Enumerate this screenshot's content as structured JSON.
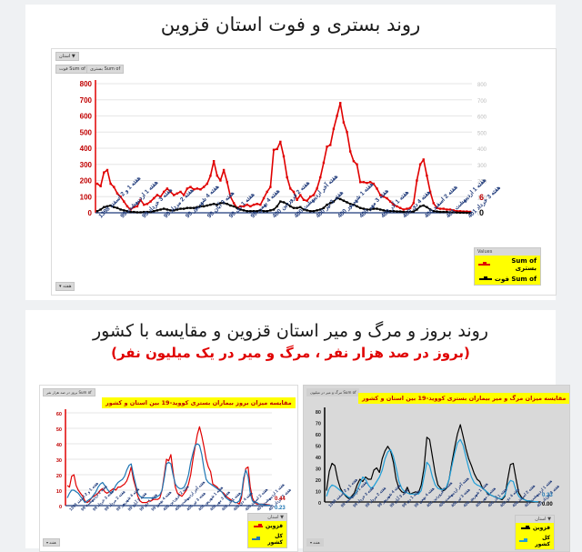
{
  "page": {
    "top_title": "روند بستری و فوت استان قزوین",
    "bottom_title": "روند بروز و مرگ و میر استان قزوین و مقایسه با کشور",
    "bottom_subtitle": "(بروز در صد هزار نفر ، مرگ و میر در یک میلیون نفر)"
  },
  "chart1_ui": {
    "filter_button": "استان",
    "field_pill_1": "Sum of فوت",
    "field_pill_2": "Sum of بستری",
    "legend_header": "Values",
    "legend_items": [
      {
        "label": "Sum of بستری",
        "color": "#e00000"
      },
      {
        "label": "Sum of فوت",
        "color": "#000000"
      }
    ],
    "axis_field_button": "هفته",
    "end_label_1": "6",
    "end_label_2": "0"
  },
  "chart2_ui": {
    "field_pill": "Sum of بروز در صد هزار نفر",
    "title": "مقایسه میزان بروز بیماران بستری کووید-19 بین استان و کشور",
    "legend_header": "استان",
    "legend_items": [
      {
        "label": "قزوین",
        "color": "#e00000"
      },
      {
        "label": "کل کشور",
        "color": "#1f77b4"
      }
    ],
    "axis_field_button": "هفته",
    "end_label_1": "0.44",
    "end_label_2": "0.23"
  },
  "chart3_ui": {
    "field_pill": "Sum of مرگ و میر در میلیون",
    "title": "مقایسه میزان مرگ و میر بیماران بستری کووید-19 بین استان و کشور",
    "legend_header": "استان",
    "legend_items": [
      {
        "label": "قزوین",
        "color": "#000000"
      },
      {
        "label": "کل کشور",
        "color": "#1f9fd8"
      }
    ],
    "axis_field_button": "هفته",
    "end_label_1": "0.23",
    "end_label_2": "0.00"
  },
  "chart_data": [
    {
      "type": "line",
      "title": "روند بستری و فوت استان قزوین",
      "xlabel": "هفته",
      "ylabel": "",
      "ylim": [
        0,
        800
      ],
      "yticks": [
        0,
        100,
        200,
        300,
        400,
        500,
        600,
        700,
        800
      ],
      "grid": true,
      "legend_position": "bottom-right",
      "categories": [
        "هفته 1 و 2 اسفند 1398",
        "هفته 1 اردیبهشت 99",
        "هفته 3 خرداد 99",
        "هفته 2 مرداد 99",
        "هفته 4 شهریور 99",
        "هفته 3 آبان 99",
        "هفته 1 دی 99",
        "هفته 4 بهمن 99",
        "هفته 2 فروردین 400",
        "هفته آخر اردیبهشت 400",
        "هفته 3 تیر 400",
        "هفته 1 شهریور 400",
        "هفته 3 مهر 400",
        "هفته 1 آذر 400",
        "هفته 4 دی 400",
        "هفته 2 اسفند 400",
        "هفته 1 اردیبهشت 401",
        "هفته 3 خرداد 401"
      ],
      "series": [
        {
          "name": "Sum of بستری",
          "color": "#e00000",
          "values": [
            180,
            165,
            250,
            265,
            180,
            160,
            120,
            100,
            70,
            40,
            20,
            35,
            40,
            80,
            50,
            55,
            70,
            90,
            110,
            100,
            130,
            150,
            130,
            110,
            120,
            130,
            110,
            150,
            160,
            145,
            150,
            145,
            160,
            180,
            230,
            320,
            230,
            200,
            265,
            190,
            100,
            60,
            30,
            40,
            40,
            50,
            40,
            50,
            55,
            50,
            90,
            130,
            160,
            390,
            395,
            440,
            350,
            220,
            150,
            130,
            80,
            110,
            80,
            75,
            100,
            110,
            150,
            220,
            310,
            410,
            420,
            520,
            600,
            680,
            560,
            500,
            380,
            320,
            300,
            190,
            190,
            185,
            190,
            180,
            150,
            110,
            100,
            90,
            70,
            50,
            40,
            30,
            20,
            25,
            30,
            60,
            200,
            300,
            330,
            230,
            130,
            60,
            30,
            25,
            25,
            20,
            20,
            15,
            10,
            10,
            8,
            8,
            6
          ]
        },
        {
          "name": "Sum of فوت",
          "color": "#000000",
          "values": [
            10,
            20,
            35,
            40,
            45,
            35,
            30,
            20,
            15,
            10,
            5,
            5,
            3,
            3,
            5,
            5,
            5,
            10,
            15,
            20,
            25,
            20,
            15,
            15,
            20,
            25,
            25,
            30,
            30,
            30,
            35,
            40,
            40,
            45,
            50,
            55,
            50,
            60,
            60,
            55,
            45,
            40,
            30,
            20,
            15,
            10,
            10,
            10,
            10,
            15,
            10,
            10,
            15,
            20,
            40,
            70,
            65,
            55,
            40,
            30,
            30,
            35,
            20,
            15,
            10,
            10,
            15,
            20,
            30,
            50,
            60,
            70,
            90,
            85,
            75,
            65,
            55,
            50,
            40,
            30,
            25,
            20,
            20,
            25,
            25,
            20,
            15,
            10,
            10,
            10,
            8,
            8,
            5,
            5,
            5,
            8,
            20,
            40,
            45,
            35,
            20,
            10,
            8,
            5,
            5,
            5,
            3,
            3,
            2,
            1,
            1,
            0,
            0
          ]
        }
      ]
    },
    {
      "type": "line",
      "title": "مقایسه میزان بروز بیماران بستری کووید-19 بین استان و کشور",
      "xlabel": "هفته",
      "ylabel": "Sum of بروز در صد هزار نفر",
      "ylim": [
        0,
        60
      ],
      "yticks": [
        0,
        10,
        20,
        30,
        40,
        50,
        60
      ],
      "grid": true,
      "legend_position": "bottom-right",
      "categories": [
        "هفته 1 و 2 اسفند 1398",
        "هفته 1 اردیبهشت 99",
        "هفته 3 خرداد 99",
        "هفته 2 مرداد 99",
        "هفته 4 شهریور 99",
        "هفته 3 آبان 99",
        "هفته 1 دی 99",
        "هفته 4 بهمن 99",
        "هفته 2 فروردین 400",
        "هفته آخر اردیبهشت 400",
        "هفته 3 تیر 400",
        "هفته 1 شهریور 400",
        "هفته 3 مهر 400",
        "هفته 1 آذر 400",
        "هفته 4 دی 400",
        "هفته 2 اسفند 400",
        "هفته 1 اردیبهشت 401",
        "هفته 3 خرداد 401"
      ],
      "series": [
        {
          "name": "قزوین",
          "color": "#e00000",
          "values": [
            13,
            12,
            19,
            20,
            13,
            10,
            8,
            6,
            3,
            2,
            3,
            5,
            6,
            7,
            8,
            10,
            11,
            9,
            8,
            9,
            10,
            11,
            10,
            12,
            12,
            13,
            14,
            16,
            20,
            25,
            17,
            12,
            6,
            3,
            2,
            2,
            2,
            3,
            3,
            4,
            4,
            4,
            5,
            10,
            20,
            30,
            29,
            33,
            22,
            12,
            8,
            7,
            6,
            8,
            10,
            14,
            20,
            30,
            38,
            46,
            51,
            45,
            38,
            30,
            25,
            22,
            14,
            13,
            12,
            10,
            9,
            8,
            6,
            5,
            4,
            3,
            2,
            2,
            1,
            5,
            16,
            24,
            25,
            12,
            5,
            2,
            1,
            1,
            1,
            1,
            0.8,
            0.6,
            0.44
          ]
        },
        {
          "name": "کل کشور",
          "color": "#1f77b4",
          "values": [
            5,
            8,
            10,
            10,
            9,
            8,
            6,
            4,
            2,
            3,
            4,
            5,
            7,
            9,
            12,
            14,
            15,
            13,
            11,
            9,
            8,
            10,
            13,
            15,
            16,
            17,
            19,
            23,
            26,
            27,
            20,
            14,
            8,
            6,
            5,
            5,
            5,
            5,
            5,
            5,
            5,
            6,
            7,
            10,
            18,
            27,
            28,
            27,
            20,
            14,
            12,
            11,
            11,
            12,
            15,
            20,
            28,
            34,
            39,
            40,
            39,
            33,
            24,
            17,
            15,
            14,
            13,
            12,
            11,
            10,
            9,
            7,
            5,
            4,
            3,
            3,
            2,
            2,
            3,
            7,
            18,
            23,
            19,
            8,
            3,
            2,
            2,
            1,
            1,
            0.8,
            0.5,
            0.3,
            0.23
          ]
        }
      ]
    },
    {
      "type": "line",
      "title": "مقایسه میزان مرگ و میر بیماران بستری کووید-19 بین استان و کشور",
      "xlabel": "هفته",
      "ylabel": "Sum of مرگ و میر در میلیون",
      "ylim": [
        0,
        80
      ],
      "yticks": [
        0,
        10,
        20,
        30,
        40,
        50,
        60,
        70,
        80
      ],
      "grid": false,
      "legend_position": "bottom-right",
      "categories": [
        "هفته 1 و 2 اسفند 1398",
        "هفته 1 اردیبهشت 99",
        "هفته 3 خرداد 99",
        "هفته 2 مرداد 99",
        "هفته 4 شهریور 99",
        "هفته 3 آبان 99",
        "هفته 1 دی 99",
        "هفته 4 بهمن 99",
        "هفته 2 فروردین 400",
        "هفته آخر اردیبهشت 400",
        "هفته 3 تیر 400",
        "هفته 1 شهریور 400",
        "هفته 3 مهر 400",
        "هفته 1 آذر 400",
        "هفته 4 دی 400",
        "هفته 2 اسفند 400",
        "هفته 1 اردیبهشت 401",
        "هفته 3 خرداد 401"
      ],
      "series": [
        {
          "name": "قزوین",
          "color": "#000000",
          "values": [
            10,
            27,
            34,
            32,
            20,
            12,
            8,
            5,
            3,
            5,
            8,
            15,
            20,
            18,
            22,
            20,
            20,
            28,
            30,
            26,
            38,
            45,
            49,
            45,
            35,
            20,
            12,
            9,
            8,
            13,
            7,
            8,
            9,
            8,
            15,
            30,
            57,
            55,
            40,
            25,
            15,
            12,
            10,
            12,
            20,
            35,
            48,
            60,
            68,
            58,
            47,
            38,
            32,
            25,
            20,
            18,
            12,
            10,
            7,
            6,
            5,
            4,
            3,
            2,
            5,
            20,
            33,
            34,
            20,
            8,
            4,
            2,
            1,
            1,
            0.5,
            0.2,
            0
          ]
        },
        {
          "name": "کل کشور",
          "color": "#1f9fd8",
          "values": [
            5,
            12,
            15,
            14,
            12,
            10,
            8,
            6,
            4,
            4,
            6,
            10,
            16,
            22,
            20,
            15,
            12,
            14,
            18,
            22,
            28,
            38,
            44,
            46,
            40,
            30,
            18,
            12,
            9,
            8,
            7,
            7,
            7,
            7,
            10,
            22,
            35,
            32,
            22,
            15,
            12,
            11,
            11,
            13,
            20,
            32,
            43,
            52,
            55,
            50,
            40,
            30,
            22,
            17,
            15,
            14,
            12,
            10,
            8,
            6,
            5,
            4,
            3,
            3,
            6,
            15,
            19,
            18,
            10,
            5,
            3,
            2,
            1,
            1,
            0.6,
            0.3,
            0.23
          ]
        }
      ]
    }
  ]
}
